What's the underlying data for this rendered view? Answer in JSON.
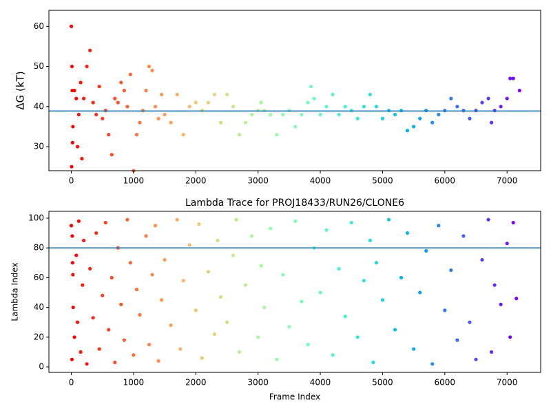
{
  "chart_data": [
    {
      "type": "scatter",
      "ylabel": "ΔG (kT)",
      "colormap": "rainbow_r",
      "x": [
        0,
        5,
        10,
        15,
        20,
        25,
        50,
        80,
        100,
        120,
        150,
        170,
        200,
        250,
        300,
        350,
        400,
        450,
        500,
        550,
        600,
        650,
        700,
        750,
        800,
        850,
        900,
        950,
        1000,
        1050,
        1100,
        1150,
        1200,
        1250,
        1300,
        1350,
        1400,
        1450,
        1500,
        1600,
        1700,
        1800,
        1900,
        2000,
        2100,
        2200,
        2300,
        2400,
        2500,
        2600,
        2700,
        2800,
        2900,
        3000,
        3050,
        3100,
        3200,
        3300,
        3400,
        3500,
        3600,
        3700,
        3800,
        3850,
        3900,
        4000,
        4100,
        4200,
        4300,
        4400,
        4500,
        4600,
        4700,
        4800,
        4900,
        5000,
        5100,
        5200,
        5300,
        5400,
        5500,
        5600,
        5700,
        5800,
        5900,
        6000,
        6100,
        6200,
        6300,
        6400,
        6500,
        6600,
        6700,
        6750,
        6800,
        6900,
        7000,
        7050,
        7100,
        7200
      ],
      "values": [
        60,
        25,
        50,
        44,
        31,
        35,
        44,
        42,
        30,
        38,
        46,
        27,
        42,
        50,
        54,
        41,
        38,
        45,
        37,
        39,
        33,
        28,
        42,
        41,
        46,
        44,
        40,
        48,
        24,
        33,
        36,
        39,
        44,
        50,
        49,
        40,
        37,
        43,
        38,
        36,
        43,
        33,
        40,
        41,
        39,
        41,
        43,
        36,
        43,
        40,
        33,
        36,
        38,
        39,
        41,
        39,
        38,
        33,
        38,
        39,
        35,
        38,
        41,
        45,
        42,
        38,
        40,
        43,
        38,
        40,
        39,
        37,
        40,
        43,
        40,
        37,
        39,
        38,
        39,
        34,
        35,
        37,
        39,
        36,
        38,
        39,
        42,
        40,
        39,
        37,
        39,
        41,
        42,
        36,
        39,
        40,
        42,
        47,
        47,
        44
      ],
      "hline": 38.9,
      "hline_color": "#1f77b4",
      "xlim": [
        -360,
        7540
      ],
      "xticks": [
        0,
        1000,
        2000,
        3000,
        4000,
        5000,
        6000,
        7000
      ],
      "ylim": [
        24,
        64
      ],
      "yticks": [
        30,
        40,
        50,
        60
      ]
    },
    {
      "type": "scatter",
      "title": "Lambda Trace for PROJ18433/RUN26/CLONE6",
      "xlabel": "Frame Index",
      "ylabel": "Lambda Index",
      "colormap": "rainbow_r",
      "x": [
        0,
        10,
        20,
        30,
        15,
        25,
        50,
        80,
        100,
        120,
        150,
        180,
        200,
        250,
        300,
        350,
        400,
        450,
        500,
        550,
        600,
        650,
        700,
        750,
        800,
        850,
        900,
        950,
        1000,
        1050,
        1100,
        1200,
        1250,
        1300,
        1350,
        1400,
        1450,
        1500,
        1600,
        1700,
        1750,
        1800,
        1900,
        2000,
        2050,
        2100,
        2200,
        2300,
        2350,
        2400,
        2500,
        2600,
        2650,
        2700,
        2800,
        2900,
        3000,
        3050,
        3100,
        3200,
        3300,
        3400,
        3500,
        3600,
        3700,
        3800,
        3900,
        4000,
        4100,
        4200,
        4300,
        4400,
        4500,
        4600,
        4700,
        4800,
        4850,
        4900,
        5000,
        5100,
        5200,
        5300,
        5400,
        5500,
        5600,
        5700,
        5800,
        5900,
        6000,
        6100,
        6200,
        6300,
        6400,
        6500,
        6600,
        6700,
        6750,
        6800,
        6900,
        7000,
        7050,
        7100,
        7150
      ],
      "values": [
        95,
        5,
        70,
        40,
        88,
        62,
        20,
        75,
        30,
        98,
        10,
        55,
        85,
        2,
        66,
        33,
        90,
        12,
        48,
        97,
        25,
        60,
        3,
        80,
        42,
        18,
        99,
        70,
        8,
        52,
        35,
        88,
        15,
        62,
        95,
        4,
        45,
        72,
        28,
        99,
        12,
        58,
        82,
        38,
        96,
        6,
        64,
        22,
        85,
        47,
        30,
        75,
        99,
        10,
        55,
        88,
        20,
        68,
        40,
        93,
        5,
        62,
        27,
        98,
        44,
        15,
        80,
        50,
        92,
        8,
        66,
        34,
        97,
        20,
        58,
        85,
        3,
        70,
        45,
        99,
        25,
        60,
        90,
        12,
        50,
        78,
        2,
        95,
        38,
        65,
        18,
        88,
        30,
        5,
        72,
        99,
        10,
        55,
        42,
        83,
        20,
        97,
        46
      ],
      "hline": 80,
      "hline_color": "#1f77b4",
      "xlim": [
        -360,
        7540
      ],
      "xticks": [
        0,
        1000,
        2000,
        3000,
        4000,
        5000,
        6000,
        7000
      ],
      "ylim": [
        -3.7,
        104.6
      ],
      "yticks": [
        0,
        20,
        40,
        60,
        80,
        100
      ]
    }
  ]
}
